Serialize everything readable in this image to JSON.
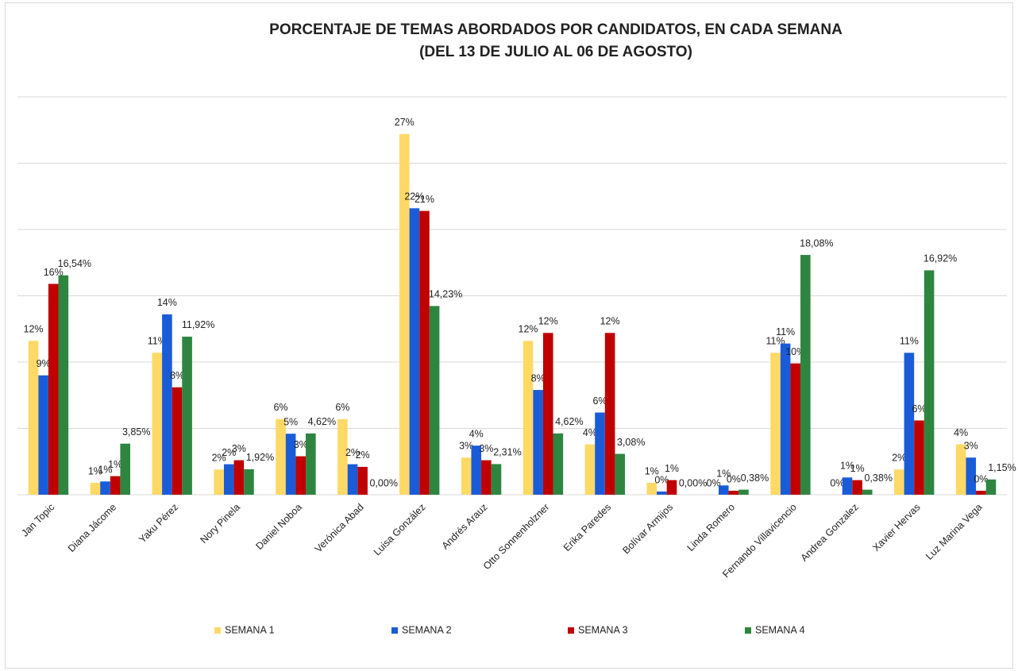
{
  "chart_data": {
    "type": "bar",
    "title": "PORCENTAJE DE TEMAS ABORDADOS POR CANDIDATOS, EN CADA SEMANA",
    "subtitle": "(DEL 13 DE JULIO AL 06 DE AGOSTO)",
    "categories": [
      "Jan Topic",
      "Diana Jácome",
      "Yaku Pérez",
      "Nory Pinela",
      "Daniel Noboa",
      "Verónica Abad",
      "Luisa González",
      "Andrés Arauz",
      "Otto Sonnenholzner",
      "Erika Paredes",
      "Bolívar Armijos",
      "Linda Romero",
      "Fernando Villavicencio",
      "Andrea Gonzalez",
      "Xavier Hervas",
      "Luz Marina Vega"
    ],
    "series": [
      {
        "name": "SEMANA 1",
        "color": "#ffd966",
        "values": [
          11.6,
          0.9,
          10.7,
          1.9,
          5.7,
          5.7,
          27.2,
          2.8,
          11.6,
          3.8,
          0.9,
          0,
          10.7,
          0,
          1.9,
          3.8
        ],
        "value_labels": [
          "12%",
          "1%",
          "11%",
          "2%",
          "6%",
          "6%",
          "27%",
          "3%",
          "12%",
          "4%",
          "1%",
          "0%",
          "11%",
          "0%",
          "2%",
          "4%"
        ]
      },
      {
        "name": "SEMANA 2",
        "color": "#1a5cd8",
        "values": [
          9.0,
          1.0,
          13.6,
          2.3,
          4.6,
          2.3,
          21.6,
          3.7,
          7.9,
          6.2,
          0.24,
          0.7,
          11.4,
          1.3,
          10.7,
          2.8
        ],
        "value_labels": [
          "9%",
          "1%",
          "14%",
          "2%",
          "5%",
          "2%",
          "22%",
          "4%",
          "8%",
          "6%",
          "0%",
          "1%",
          "11%",
          "1%",
          "11%",
          "3%"
        ]
      },
      {
        "name": "SEMANA 3",
        "color": "#c00000",
        "values": [
          15.9,
          1.4,
          8.1,
          2.6,
          2.9,
          2.1,
          21.4,
          2.6,
          12.2,
          12.2,
          1.1,
          0.3,
          9.9,
          1.1,
          5.6,
          0.3
        ],
        "value_labels": [
          "16%",
          "1%",
          "8%",
          "3%",
          "3%",
          "2%",
          "21%",
          "3%",
          "12%",
          "12%",
          "1%",
          "0%",
          "10%",
          "1%",
          "6%",
          "0%"
        ]
      },
      {
        "name": "SEMANA 4",
        "color": "#2e8540",
        "values": [
          16.54,
          3.85,
          11.92,
          1.92,
          4.62,
          0,
          14.23,
          2.31,
          4.62,
          3.08,
          0,
          0.38,
          18.08,
          0.38,
          16.92,
          1.15
        ],
        "value_labels": [
          "16,54%",
          "3,85%",
          "11,92%",
          "1,92%",
          "4,62%",
          "0,00%",
          "14,23%",
          "2,31%",
          "4,62%",
          "3,08%",
          "0,00%",
          "0,38%",
          "18,08%",
          "0,38%",
          "16,92%",
          "1,15%"
        ]
      }
    ],
    "ylim": [
      0,
      30
    ],
    "yticks": [
      0,
      5,
      10,
      15,
      20,
      25,
      30
    ],
    "grid": true,
    "legend": "bottom"
  }
}
